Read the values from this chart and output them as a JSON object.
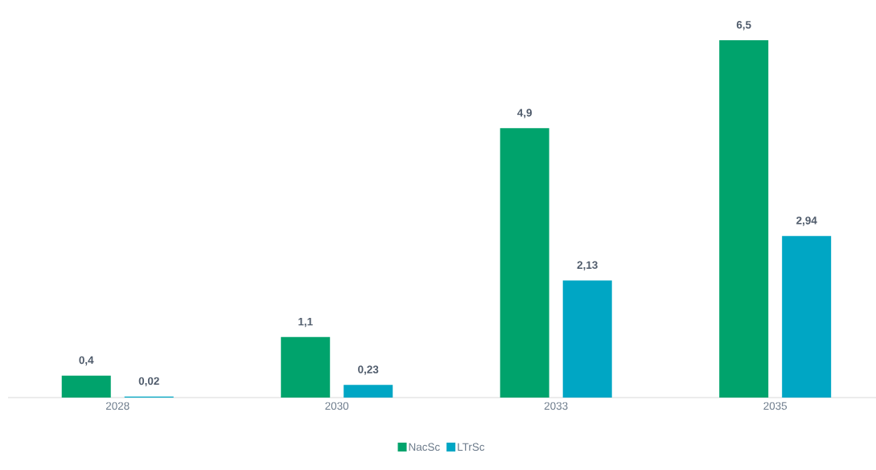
{
  "chart_data": {
    "type": "bar",
    "categories": [
      "2028",
      "2030",
      "2033",
      "2035"
    ],
    "series": [
      {
        "name": "NacSc",
        "color": "#00a36c",
        "values": [
          0.4,
          1.1,
          4.9,
          6.5
        ],
        "value_labels": [
          "0,4",
          "1,1",
          "4,9",
          "6,5"
        ]
      },
      {
        "name": "LTrSc",
        "color": "#00a6c4",
        "values": [
          0.02,
          0.23,
          2.13,
          2.94
        ],
        "value_labels": [
          "0,02",
          "0,23",
          "2,13",
          "2,94"
        ]
      }
    ],
    "tick_labels": "x",
    "grid": false,
    "legend": "bottom"
  }
}
